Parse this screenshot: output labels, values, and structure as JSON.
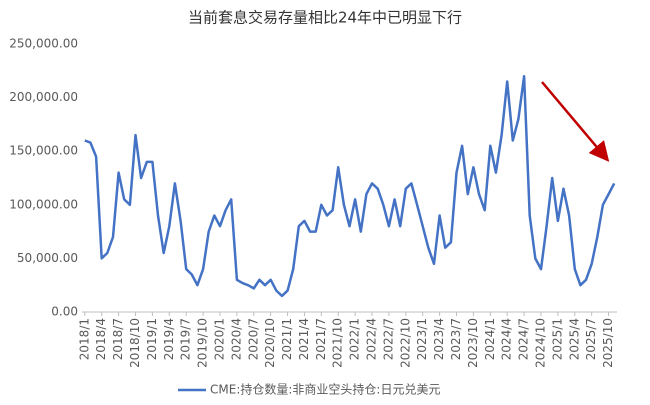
{
  "chart_data": {
    "type": "line",
    "title": "当前套息交易存量相比24年中已明显下行",
    "categories": [
      "2018/1",
      null,
      null,
      "2018/4",
      null,
      null,
      "2018/7",
      null,
      null,
      "2018/10",
      null,
      null,
      "2019/1",
      null,
      null,
      "2019/4",
      null,
      null,
      "2019/7",
      null,
      null,
      "2019/10",
      null,
      null,
      "2020/1",
      null,
      null,
      "2020/4",
      null,
      null,
      "2020/7",
      null,
      null,
      "2020/10",
      null,
      null,
      "2021/1",
      null,
      null,
      "2021/4",
      null,
      null,
      "2021/7",
      null,
      null,
      "2021/10",
      null,
      null,
      "2022/1",
      null,
      null,
      "2022/4",
      null,
      null,
      "2022/7",
      null,
      null,
      "2022/10",
      null,
      null,
      "2023/1",
      null,
      null,
      "2023/4",
      null,
      null,
      "2023/7",
      null,
      null,
      "2023/10",
      null,
      null,
      "2024/1",
      null,
      null,
      "2024/4",
      null,
      null,
      "2024/7",
      null,
      null,
      "2024/10",
      null,
      null,
      "2025/1",
      null,
      null,
      "2025/4",
      null,
      null,
      "2025/7",
      null,
      null,
      "2025/10",
      null
    ],
    "series": [
      {
        "name": "CME:持仓数量:非商业空头持仓:日元兑美元",
        "color": "#4472c4",
        "values": [
          160000,
          158000,
          145000,
          50000,
          55000,
          70000,
          130000,
          105000,
          100000,
          165000,
          125000,
          140000,
          140000,
          90000,
          55000,
          80000,
          120000,
          85000,
          40000,
          35000,
          25000,
          40000,
          75000,
          90000,
          80000,
          95000,
          105000,
          30000,
          27000,
          25000,
          22000,
          30000,
          25000,
          30000,
          20000,
          15000,
          20000,
          40000,
          80000,
          85000,
          75000,
          75000,
          100000,
          90000,
          95000,
          135000,
          100000,
          80000,
          105000,
          75000,
          110000,
          120000,
          115000,
          100000,
          80000,
          105000,
          80000,
          115000,
          120000,
          100000,
          80000,
          60000,
          45000,
          90000,
          60000,
          65000,
          130000,
          155000,
          110000,
          135000,
          110000,
          95000,
          155000,
          130000,
          165000,
          215000,
          160000,
          180000,
          220000,
          90000,
          50000,
          40000,
          80000,
          125000,
          85000,
          115000,
          90000,
          40000,
          25000,
          30000,
          45000,
          70000,
          100000,
          110000,
          120000
        ]
      }
    ],
    "ylim": [
      0,
      250000
    ],
    "yticks": [
      {
        "value": 0,
        "label": "0.00"
      },
      {
        "value": 50000,
        "label": "50,000.00"
      },
      {
        "value": 100000,
        "label": "100,000.00"
      },
      {
        "value": 150000,
        "label": "150,000.00"
      },
      {
        "value": 200000,
        "label": "200,000.00"
      },
      {
        "value": 250000,
        "label": "250,000.00"
      }
    ],
    "grid": false
  }
}
